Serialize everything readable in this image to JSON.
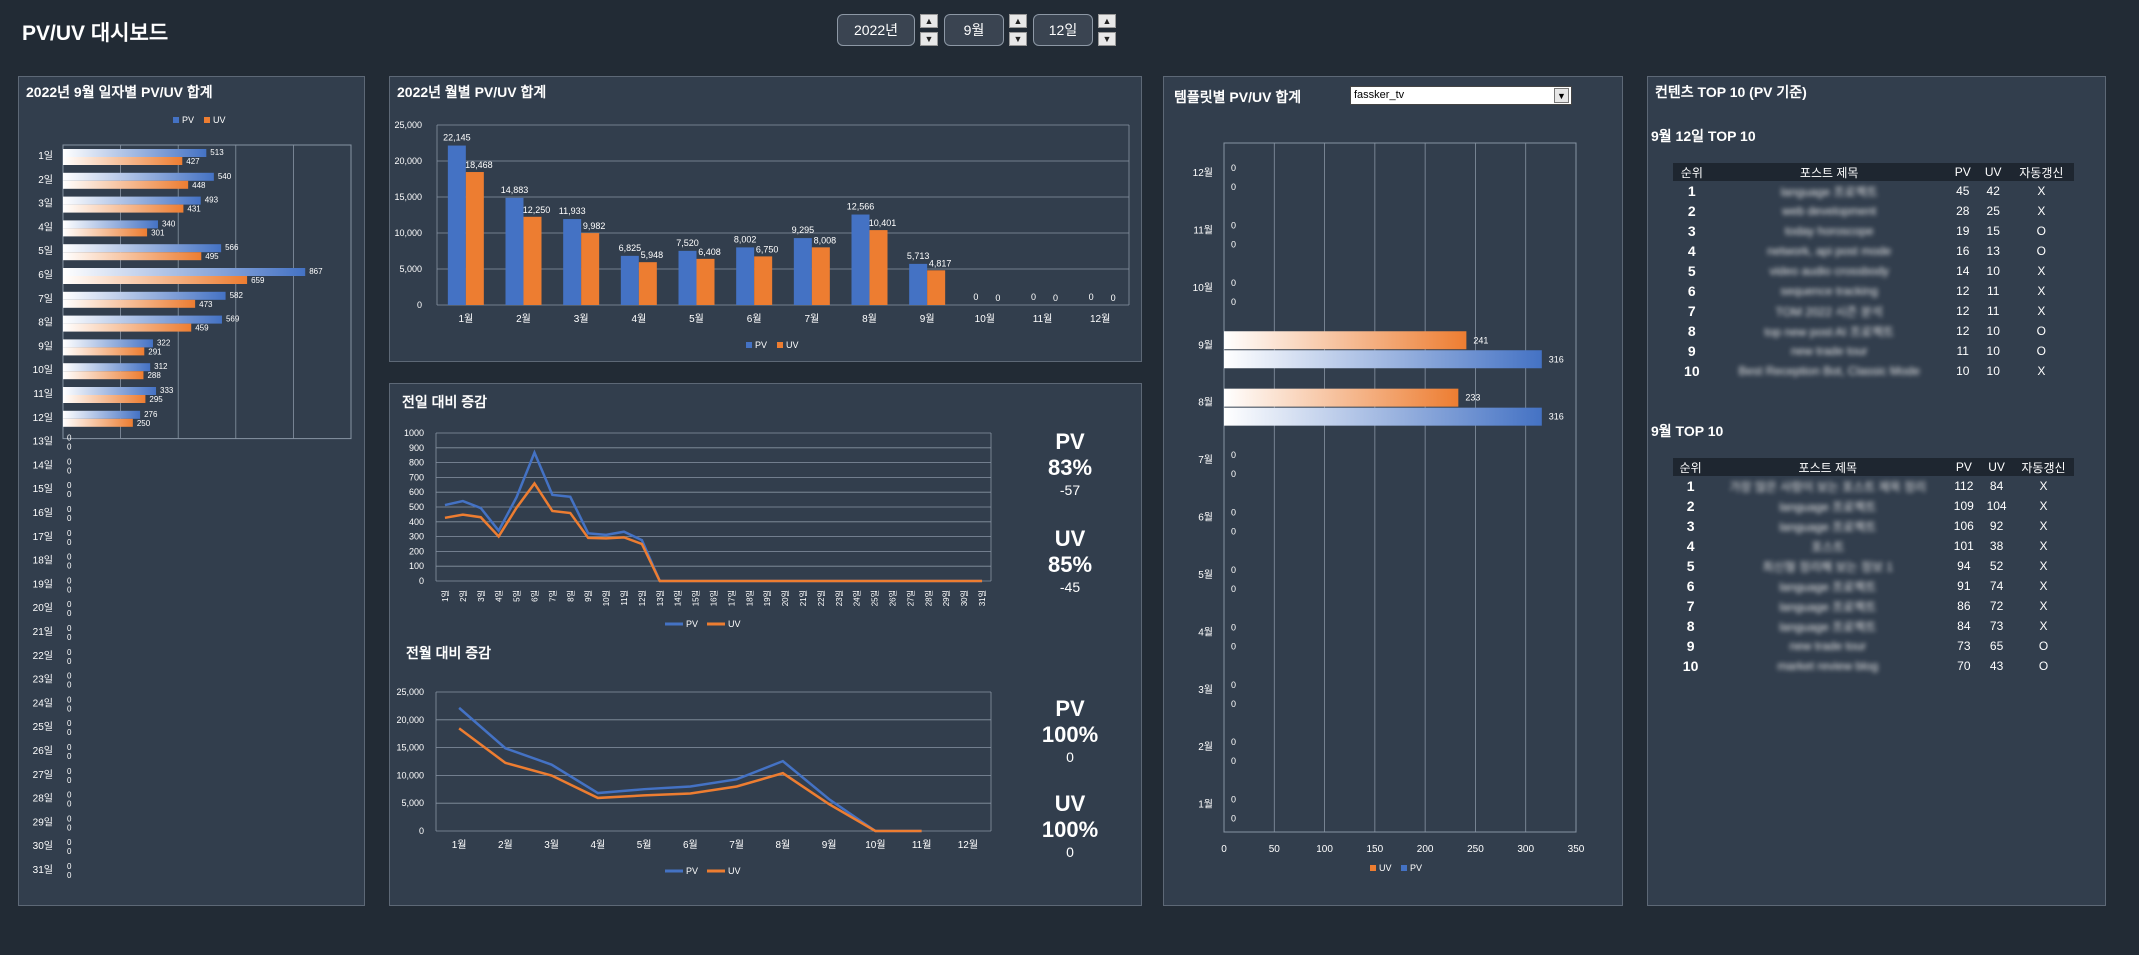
{
  "app": {
    "title": "PV/UV 대시보드"
  },
  "controls": {
    "year": "2022년",
    "month": "9월",
    "day": "12일",
    "up_icon": "triangle-up-icon",
    "down_icon": "triangle-down-icon"
  },
  "colors": {
    "pv": "#4472c4",
    "uv": "#ed7d31",
    "panel": "#323e4d",
    "bg": "#222b35"
  },
  "daily_panel": {
    "title": "2022년 9월 일자별 PV/UV 합계",
    "legend_pv": "PV",
    "legend_uv": "UV"
  },
  "monthly_panel": {
    "title": "2022년 월별 PV/UV 합계",
    "legend_pv": "PV",
    "legend_uv": "UV"
  },
  "growth_daily_panel": {
    "title": "전일 대비 증감",
    "legend_pv": "PV",
    "legend_uv": "UV",
    "pv_label": "PV",
    "pv_pct": "83%",
    "pv_diff": "-57",
    "uv_label": "UV",
    "uv_pct": "85%",
    "uv_diff": "-45"
  },
  "growth_monthly_panel": {
    "title": "전월 대비 증감",
    "legend_pv": "PV",
    "legend_uv": "UV",
    "pv_label": "PV",
    "pv_pct": "100%",
    "pv_diff": "0",
    "uv_label": "UV",
    "uv_pct": "100%",
    "uv_diff": "0"
  },
  "template_panel": {
    "title": "템플릿별 PV/UV 합계",
    "selected_template": "fassker_tv",
    "legend_uv": "UV",
    "legend_pv": "PV"
  },
  "top_panel": {
    "title": "컨텐츠 TOP 10 (PV 기준)",
    "headers": [
      "순위",
      "포스트 제목",
      "PV",
      "UV",
      "자동갱신"
    ],
    "day_title": "9월 12일 TOP 10",
    "day_rows": [
      [
        "1",
        "language 프로젝트",
        "45",
        "42",
        "X"
      ],
      [
        "2",
        "web development",
        "28",
        "25",
        "X"
      ],
      [
        "3",
        "today horoscope",
        "19",
        "15",
        "O"
      ],
      [
        "4",
        "network, api post mode",
        "16",
        "13",
        "O"
      ],
      [
        "5",
        "video audio crossbody",
        "14",
        "10",
        "X"
      ],
      [
        "6",
        "sequence tracking",
        "12",
        "11",
        "X"
      ],
      [
        "7",
        "TOM 2022 시즌 분석",
        "12",
        "11",
        "X"
      ],
      [
        "8",
        "top new post AI 프로젝트",
        "12",
        "10",
        "O"
      ],
      [
        "9",
        "new trade tour",
        "11",
        "10",
        "O"
      ],
      [
        "10",
        "Best Reception Bot, Classic Mode",
        "10",
        "10",
        "X"
      ]
    ],
    "month_title": "9월 TOP 10",
    "month_rows": [
      [
        "1",
        "가장 많은 사람이 보는 포스트 제목 정리",
        "112",
        "84",
        "X"
      ],
      [
        "2",
        "language 프로젝트",
        "109",
        "104",
        "X"
      ],
      [
        "3",
        "language 프로젝트",
        "106",
        "92",
        "X"
      ],
      [
        "4",
        "포스트",
        "101",
        "38",
        "X"
      ],
      [
        "5",
        "최신형 정리해 보는 정보 1",
        "94",
        "52",
        "X"
      ],
      [
        "6",
        "language 프로젝트",
        "91",
        "74",
        "X"
      ],
      [
        "7",
        "language 프로젝트",
        "86",
        "72",
        "X"
      ],
      [
        "8",
        "language 프로젝트",
        "84",
        "73",
        "X"
      ],
      [
        "9",
        "new trade tour",
        "73",
        "65",
        "O"
      ],
      [
        "10",
        "market review blog",
        "70",
        "43",
        "O"
      ]
    ]
  },
  "chart_data": [
    {
      "id": "daily",
      "type": "bar",
      "orientation": "horizontal",
      "title": "2022년 9월 일자별 PV/UV 합계",
      "categories": [
        "1일",
        "2일",
        "3일",
        "4일",
        "5일",
        "6일",
        "7일",
        "8일",
        "9일",
        "10일",
        "11일",
        "12일",
        "13일",
        "14일",
        "15일",
        "16일",
        "17일",
        "18일",
        "19일",
        "20일",
        "21일",
        "22일",
        "23일",
        "24일",
        "25일",
        "26일",
        "27일",
        "28일",
        "29일",
        "30일",
        "31일"
      ],
      "series": [
        {
          "name": "PV",
          "values": [
            513,
            540,
            493,
            340,
            566,
            867,
            582,
            569,
            322,
            312,
            333,
            276,
            0,
            0,
            0,
            0,
            0,
            0,
            0,
            0,
            0,
            0,
            0,
            0,
            0,
            0,
            0,
            0,
            0,
            0,
            0
          ]
        },
        {
          "name": "UV",
          "values": [
            427,
            448,
            431,
            301,
            495,
            659,
            473,
            459,
            291,
            288,
            295,
            250,
            0,
            0,
            0,
            0,
            0,
            0,
            0,
            0,
            0,
            0,
            0,
            0,
            0,
            0,
            0,
            0,
            0,
            0,
            0
          ]
        }
      ],
      "xlim": [
        0,
        1000
      ]
    },
    {
      "id": "monthly",
      "type": "bar",
      "title": "2022년 월별 PV/UV 합계",
      "categories": [
        "1월",
        "2월",
        "3월",
        "4월",
        "5월",
        "6월",
        "7월",
        "8월",
        "9월",
        "10월",
        "11월",
        "12월"
      ],
      "series": [
        {
          "name": "PV",
          "values": [
            22145,
            14883,
            11933,
            6825,
            7520,
            8002,
            9295,
            12566,
            5713,
            0,
            0,
            0
          ]
        },
        {
          "name": "UV",
          "values": [
            18468,
            12250,
            9982,
            5948,
            6408,
            6750,
            8008,
            10401,
            4817,
            0,
            0,
            0
          ]
        }
      ],
      "ylim": [
        0,
        25000
      ],
      "yticks": [
        "0",
        "5,000",
        "10,000",
        "15,000",
        "20,000",
        "25,000"
      ],
      "value_labels_pv": [
        "22,145",
        "14,883",
        "11,933",
        "6,825",
        "7,520",
        "8,002",
        "9,295",
        "12,566",
        "5,713",
        "0",
        "0",
        "0"
      ],
      "value_labels_uv": [
        "18,468",
        "12,250",
        "9,982",
        "5,948",
        "6,408",
        "6,750",
        "8,008",
        "10,401",
        "4,817",
        "0",
        "0",
        "0"
      ]
    },
    {
      "id": "growth_daily",
      "type": "line",
      "title": "전일 대비 증감",
      "categories": [
        "1일",
        "2일",
        "3일",
        "4일",
        "5일",
        "6일",
        "7일",
        "8일",
        "9일",
        "10일",
        "11일",
        "12일",
        "13일",
        "14일",
        "15일",
        "16일",
        "17일",
        "18일",
        "19일",
        "20일",
        "21일",
        "22일",
        "23일",
        "24일",
        "25일",
        "26일",
        "27일",
        "28일",
        "29일",
        "30일",
        "31일"
      ],
      "series": [
        {
          "name": "PV",
          "values": [
            513,
            540,
            493,
            340,
            566,
            867,
            582,
            569,
            322,
            312,
            333,
            276,
            0,
            0,
            0,
            0,
            0,
            0,
            0,
            0,
            0,
            0,
            0,
            0,
            0,
            0,
            0,
            0,
            0,
            0,
            0
          ]
        },
        {
          "name": "UV",
          "values": [
            427,
            448,
            431,
            301,
            495,
            659,
            473,
            459,
            291,
            288,
            295,
            250,
            0,
            0,
            0,
            0,
            0,
            0,
            0,
            0,
            0,
            0,
            0,
            0,
            0,
            0,
            0,
            0,
            0,
            0,
            0
          ]
        }
      ],
      "ylim": [
        0,
        1000
      ],
      "yticks": [
        "0",
        "100",
        "200",
        "300",
        "400",
        "500",
        "600",
        "700",
        "800",
        "900",
        "1000"
      ]
    },
    {
      "id": "growth_monthly",
      "type": "line",
      "title": "전월 대비 증감",
      "categories": [
        "1월",
        "2월",
        "3월",
        "4월",
        "5월",
        "6월",
        "7월",
        "8월",
        "9월",
        "10월",
        "11월",
        "12월"
      ],
      "series": [
        {
          "name": "PV",
          "values": [
            22145,
            14883,
            11933,
            6825,
            7520,
            8002,
            9295,
            12566,
            5713,
            0,
            0,
            0
          ]
        },
        {
          "name": "UV",
          "values": [
            18468,
            12250,
            9982,
            5948,
            6408,
            6750,
            8008,
            10401,
            4817,
            0,
            0,
            0
          ]
        }
      ],
      "ylim": [
        0,
        25000
      ],
      "yticks": [
        "0",
        "5,000",
        "10,000",
        "15,000",
        "20,000",
        "25,000"
      ]
    },
    {
      "id": "template",
      "type": "bar",
      "orientation": "horizontal",
      "title": "템플릿별 PV/UV 합계",
      "categories": [
        "12월",
        "11월",
        "10월",
        "9월",
        "8월",
        "7월",
        "6월",
        "5월",
        "4월",
        "3월",
        "2월",
        "1월"
      ],
      "series": [
        {
          "name": "UV",
          "values": [
            0,
            0,
            0,
            241,
            233,
            0,
            0,
            0,
            0,
            0,
            0,
            0
          ]
        },
        {
          "name": "PV",
          "values": [
            0,
            0,
            0,
            316,
            316,
            0,
            0,
            0,
            0,
            0,
            0,
            0
          ]
        }
      ],
      "xlim": [
        0,
        350
      ],
      "xticks": [
        "0",
        "50",
        "100",
        "150",
        "200",
        "250",
        "300",
        "350"
      ]
    }
  ]
}
